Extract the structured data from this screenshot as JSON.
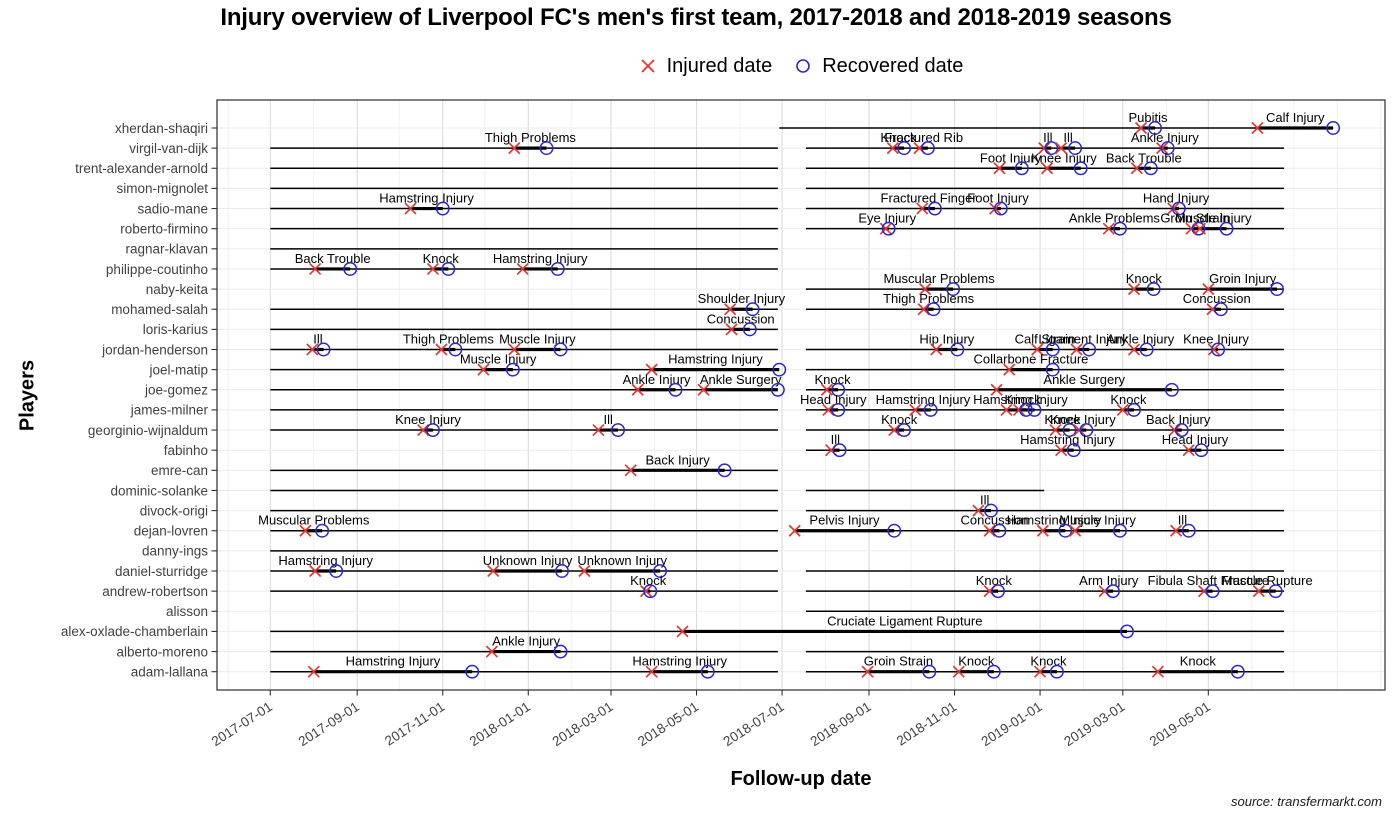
{
  "title": "Injury overview of Liverpool FC's men's first team, 2017-2018 and 2018-2019 seasons",
  "legend": {
    "injured_label": "Injured date",
    "recovered_label": "Recovered date"
  },
  "axes": {
    "y_title": "Players",
    "x_title": "Follow-up date",
    "x_ticks": [
      "2017-07-01",
      "2017-09-01",
      "2017-11-01",
      "2018-01-01",
      "2018-03-01",
      "2018-05-01",
      "2018-07-01",
      "2018-09-01",
      "2018-11-01",
      "2019-01-01",
      "2019-03-01",
      "2019-05-01"
    ]
  },
  "caption": "source: transfermarkt.com",
  "colors": {
    "injured_marker": "#e8352e",
    "recovered_marker": "#2727d3",
    "timeline": "#000000",
    "grid_major": "#dcdcdc",
    "grid_minor": "#f0f0f0",
    "row_grid": "#ebebeb",
    "panel_border": "#2b2b2b",
    "tick_text": "#424242",
    "label_text": "#000000"
  },
  "chart_data": {
    "type": "scatter",
    "subtype": "injury_timeline",
    "title": "Injury overview of Liverpool FC's men's first team, 2017-2018 and 2018-2019 seasons",
    "xlabel": "Follow-up date",
    "ylabel": "Players",
    "legend_position": "top-center",
    "grid": true,
    "x_range": [
      "2017-05-24",
      "2019-09-04"
    ],
    "x_tick_labels": [
      "2017-07-01",
      "2017-09-01",
      "2017-11-01",
      "2018-01-01",
      "2018-03-01",
      "2018-05-01",
      "2018-07-01",
      "2018-09-01",
      "2018-11-01",
      "2019-01-01",
      "2019-03-01",
      "2019-05-01"
    ],
    "series": [
      {
        "name": "Injured date",
        "marker": "x",
        "color": "#e8352e"
      },
      {
        "name": "Recovered date",
        "marker": "o",
        "color": "#2727d3"
      }
    ],
    "players": [
      {
        "name": "xherdan-shaqiri",
        "followup_periods": [
          [
            "2018-06-29",
            "2019-06-24"
          ]
        ],
        "injuries": [
          {
            "label": "Pubitis",
            "injured": "2019-03-14",
            "recovered": "2019-03-24"
          },
          {
            "label": "Calf Injury",
            "injured": "2019-06-05",
            "recovered": "2019-07-29"
          }
        ]
      },
      {
        "name": "virgil-van-dijk",
        "followup_periods": [
          [
            "2017-07-01",
            "2018-06-28"
          ],
          [
            "2018-07-18",
            "2019-06-24"
          ]
        ],
        "injuries": [
          {
            "label": "Thigh Problems",
            "injured": "2017-12-22",
            "recovered": "2018-01-14"
          },
          {
            "label": "Knock",
            "injured": "2018-09-18",
            "recovered": "2018-09-26"
          },
          {
            "label": "Fractured Rib",
            "injured": "2018-10-07",
            "recovered": "2018-10-13"
          },
          {
            "label": "Ill",
            "injured": "2019-01-04",
            "recovered": "2019-01-09"
          },
          {
            "label": "Ill",
            "injured": "2019-01-16",
            "recovered": "2019-01-26"
          },
          {
            "label": "Ankle Injury",
            "injured": "2019-03-29",
            "recovered": "2019-04-02"
          }
        ]
      },
      {
        "name": "trent-alexander-arnold",
        "followup_periods": [
          [
            "2017-07-01",
            "2018-06-28"
          ],
          [
            "2018-07-18",
            "2019-06-24"
          ]
        ],
        "injuries": [
          {
            "label": "Foot Injury",
            "injured": "2018-12-03",
            "recovered": "2018-12-19"
          },
          {
            "label": "Knee Injury",
            "injured": "2019-01-06",
            "recovered": "2019-01-30"
          },
          {
            "label": "Back Trouble",
            "injured": "2019-03-11",
            "recovered": "2019-03-21"
          }
        ]
      },
      {
        "name": "simon-mignolet",
        "followup_periods": [
          [
            "2017-07-01",
            "2018-06-28"
          ],
          [
            "2018-07-18",
            "2019-06-24"
          ]
        ],
        "injuries": []
      },
      {
        "name": "sadio-mane",
        "followup_periods": [
          [
            "2017-07-01",
            "2018-06-28"
          ],
          [
            "2018-07-18",
            "2019-06-24"
          ]
        ],
        "injuries": [
          {
            "label": "Hamstring Injury",
            "injured": "2017-10-09",
            "recovered": "2017-11-01"
          },
          {
            "label": "Fractured Finger",
            "injured": "2018-10-09",
            "recovered": "2018-10-18"
          },
          {
            "label": "Foot Injury",
            "injured": "2018-11-30",
            "recovered": "2018-12-04"
          },
          {
            "label": "Hand Injury",
            "injured": "2019-04-06",
            "recovered": "2019-04-10"
          }
        ]
      },
      {
        "name": "roberto-firmino",
        "followup_periods": [
          [
            "2017-07-01",
            "2018-06-28"
          ],
          [
            "2018-07-18",
            "2019-06-24"
          ]
        ],
        "injuries": [
          {
            "label": "Eye Injury",
            "injured": "2018-09-13",
            "recovered": "2018-09-15"
          },
          {
            "label": "Ankle Problems",
            "injured": "2019-02-19",
            "recovered": "2019-02-27"
          },
          {
            "label": "Groin Strain",
            "injured": "2019-04-19",
            "recovered": "2019-04-24"
          },
          {
            "label": "Muscle Injury",
            "injured": "2019-04-25",
            "recovered": "2019-05-14"
          }
        ]
      },
      {
        "name": "ragnar-klavan",
        "followup_periods": [
          [
            "2017-07-01",
            "2018-06-28"
          ]
        ],
        "injuries": []
      },
      {
        "name": "philippe-coutinho",
        "followup_periods": [
          [
            "2017-07-01",
            "2018-06-28"
          ]
        ],
        "injuries": [
          {
            "label": "Back Trouble",
            "injured": "2017-08-02",
            "recovered": "2017-08-27"
          },
          {
            "label": "Knock",
            "injured": "2017-10-25",
            "recovered": "2017-11-05"
          },
          {
            "label": "Hamstring Injury",
            "injured": "2017-12-28",
            "recovered": "2018-01-22"
          }
        ]
      },
      {
        "name": "naby-keita",
        "followup_periods": [
          [
            "2018-07-18",
            "2019-06-24"
          ]
        ],
        "injuries": [
          {
            "label": "Muscular Problems",
            "injured": "2018-10-11",
            "recovered": "2018-10-31"
          },
          {
            "label": "Knock",
            "injured": "2019-03-09",
            "recovered": "2019-03-23"
          },
          {
            "label": "Groin Injury",
            "injured": "2019-05-01",
            "recovered": "2019-06-19"
          }
        ]
      },
      {
        "name": "mohamed-salah",
        "followup_periods": [
          [
            "2017-07-01",
            "2018-06-28"
          ],
          [
            "2018-07-18",
            "2019-06-24"
          ]
        ],
        "injuries": [
          {
            "label": "Shoulder Injury",
            "injured": "2018-05-25",
            "recovered": "2018-06-10"
          },
          {
            "label": "Thigh Problems",
            "injured": "2018-10-10",
            "recovered": "2018-10-17"
          },
          {
            "label": "Concussion",
            "injured": "2019-05-04",
            "recovered": "2019-05-10"
          }
        ]
      },
      {
        "name": "loris-karius",
        "followup_periods": [
          [
            "2017-07-01",
            "2018-06-28"
          ]
        ],
        "injuries": [
          {
            "label": "Concussion",
            "injured": "2018-05-26",
            "recovered": "2018-06-08"
          }
        ]
      },
      {
        "name": "jordan-henderson",
        "followup_periods": [
          [
            "2017-07-01",
            "2018-06-28"
          ],
          [
            "2018-07-18",
            "2019-06-24"
          ]
        ],
        "injuries": [
          {
            "label": "Ill",
            "injured": "2017-07-31",
            "recovered": "2017-08-08"
          },
          {
            "label": "Thigh Problems",
            "injured": "2017-10-31",
            "recovered": "2017-11-10"
          },
          {
            "label": "Muscle Injury",
            "injured": "2017-12-22",
            "recovered": "2018-01-24"
          },
          {
            "label": "Hip Injury",
            "injured": "2018-10-19",
            "recovered": "2018-11-03"
          },
          {
            "label": "Calf Strain",
            "injured": "2018-12-30",
            "recovered": "2019-01-10"
          },
          {
            "label": "Ligament Injury",
            "injured": "2019-01-27",
            "recovered": "2019-02-05"
          },
          {
            "label": "Ankle Injury",
            "injured": "2019-03-09",
            "recovered": "2019-03-18"
          },
          {
            "label": "Knee Injury",
            "injured": "2019-05-05",
            "recovered": "2019-05-08"
          }
        ]
      },
      {
        "name": "joel-matip",
        "followup_periods": [
          [
            "2017-07-01",
            "2018-06-28"
          ],
          [
            "2018-07-18",
            "2019-06-24"
          ]
        ],
        "injuries": [
          {
            "label": "Muscle Injury",
            "injured": "2017-11-30",
            "recovered": "2017-12-21"
          },
          {
            "label": "Hamstring Injury",
            "injured": "2018-03-30",
            "recovered": "2018-06-29"
          },
          {
            "label": "Collarbone Fracture",
            "injured": "2018-12-10",
            "recovered": "2019-01-10"
          }
        ]
      },
      {
        "name": "joe-gomez",
        "followup_periods": [
          [
            "2017-07-01",
            "2018-06-28"
          ],
          [
            "2018-07-18",
            "2019-06-24"
          ]
        ],
        "injuries": [
          {
            "label": "Ankle Injury",
            "injured": "2018-03-20",
            "recovered": "2018-04-16"
          },
          {
            "label": "Ankle Surgery",
            "injured": "2018-05-06",
            "recovered": "2018-06-28"
          },
          {
            "label": "Knock",
            "injured": "2018-08-02",
            "recovered": "2018-08-10"
          },
          {
            "label": "Ankle Surgery",
            "injured": "2018-12-01",
            "recovered": "2019-04-05"
          }
        ]
      },
      {
        "name": "james-milner",
        "followup_periods": [
          [
            "2017-07-01",
            "2018-06-28"
          ],
          [
            "2018-07-18",
            "2019-06-24"
          ]
        ],
        "injuries": [
          {
            "label": "Head Injury",
            "injured": "2018-08-03",
            "recovered": "2018-08-10"
          },
          {
            "label": "Hamstring Injury",
            "injured": "2018-10-04",
            "recovered": "2018-10-15"
          },
          {
            "label": "Hamstring Injury",
            "injured": "2018-12-08",
            "recovered": "2018-12-28"
          },
          {
            "label": "Knock",
            "injured": "2018-12-17",
            "recovered": "2018-12-22"
          },
          {
            "label": "Knock",
            "injured": "2019-03-01",
            "recovered": "2019-03-09"
          }
        ]
      },
      {
        "name": "georginio-wijnaldum",
        "followup_periods": [
          [
            "2017-07-01",
            "2018-06-28"
          ],
          [
            "2018-07-18",
            "2019-06-24"
          ]
        ],
        "injuries": [
          {
            "label": "Knee Injury",
            "injured": "2017-10-18",
            "recovered": "2017-10-25"
          },
          {
            "label": "Ill",
            "injured": "2018-02-20",
            "recovered": "2018-03-06"
          },
          {
            "label": "Knock",
            "injured": "2018-09-19",
            "recovered": "2018-09-26"
          },
          {
            "label": "Knock",
            "injured": "2019-01-12",
            "recovered": "2019-01-22"
          },
          {
            "label": "Knee Injury",
            "injured": "2019-01-29",
            "recovered": "2019-02-03"
          },
          {
            "label": "Back Injury",
            "injured": "2019-04-07",
            "recovered": "2019-04-12"
          }
        ]
      },
      {
        "name": "fabinho",
        "followup_periods": [
          [
            "2018-07-18",
            "2019-06-24"
          ]
        ],
        "injuries": [
          {
            "label": "Ill",
            "injured": "2018-08-05",
            "recovered": "2018-08-11"
          },
          {
            "label": "Hamstring Injury",
            "injured": "2019-01-16",
            "recovered": "2019-01-25"
          },
          {
            "label": "Head Injury",
            "injured": "2019-04-17",
            "recovered": "2019-04-26"
          }
        ]
      },
      {
        "name": "emre-can",
        "followup_periods": [
          [
            "2017-07-01",
            "2018-06-28"
          ]
        ],
        "injuries": [
          {
            "label": "Back Injury",
            "injured": "2018-03-15",
            "recovered": "2018-05-21"
          }
        ]
      },
      {
        "name": "dominic-solanke",
        "followup_periods": [
          [
            "2017-07-01",
            "2018-06-28"
          ],
          [
            "2018-07-18",
            "2019-01-04"
          ]
        ],
        "injuries": []
      },
      {
        "name": "divock-origi",
        "followup_periods": [
          [
            "2017-07-01",
            "2018-06-28"
          ],
          [
            "2018-07-18",
            "2019-06-24"
          ]
        ],
        "injuries": [
          {
            "label": "Ill",
            "injured": "2018-11-18",
            "recovered": "2018-11-27"
          }
        ]
      },
      {
        "name": "dejan-lovren",
        "followup_periods": [
          [
            "2017-07-01",
            "2018-06-28"
          ],
          [
            "2018-07-18",
            "2019-06-24"
          ]
        ],
        "injuries": [
          {
            "label": "Muscular Problems",
            "injured": "2017-07-26",
            "recovered": "2017-08-07"
          },
          {
            "label": "Pelvis Injury",
            "injured": "2018-07-10",
            "recovered": "2018-09-19"
          },
          {
            "label": "Concussion",
            "injured": "2018-11-26",
            "recovered": "2018-12-03"
          },
          {
            "label": "Hamstring Injury",
            "injured": "2019-01-03",
            "recovered": "2019-01-19"
          },
          {
            "label": "Muscle Injury",
            "injured": "2019-01-26",
            "recovered": "2019-02-27"
          },
          {
            "label": "Ill",
            "injured": "2019-04-08",
            "recovered": "2019-04-17"
          }
        ]
      },
      {
        "name": "danny-ings",
        "followup_periods": [
          [
            "2017-07-01",
            "2018-06-28"
          ]
        ],
        "injuries": []
      },
      {
        "name": "daniel-sturridge",
        "followup_periods": [
          [
            "2017-07-01",
            "2018-06-28"
          ],
          [
            "2018-07-18",
            "2019-06-24"
          ]
        ],
        "injuries": [
          {
            "label": "Hamstring Injury",
            "injured": "2017-08-02",
            "recovered": "2017-08-17"
          },
          {
            "label": "Unknown Injury",
            "injured": "2017-12-07",
            "recovered": "2018-01-25"
          },
          {
            "label": "Unknown Injury",
            "injured": "2018-02-10",
            "recovered": "2018-04-05"
          }
        ]
      },
      {
        "name": "andrew-robertson",
        "followup_periods": [
          [
            "2017-07-01",
            "2018-06-28"
          ],
          [
            "2018-07-18",
            "2019-06-24"
          ]
        ],
        "injuries": [
          {
            "label": "Knock",
            "injured": "2018-03-26",
            "recovered": "2018-03-29"
          },
          {
            "label": "Knock",
            "injured": "2018-11-26",
            "recovered": "2018-12-02"
          },
          {
            "label": "Arm Injury",
            "injured": "2019-02-16",
            "recovered": "2019-02-22"
          },
          {
            "label": "Fibula Shaft Fracture",
            "injured": "2019-04-28",
            "recovered": "2019-05-04"
          },
          {
            "label": "Muscle Rupture",
            "injured": "2019-06-06",
            "recovered": "2019-06-18"
          }
        ]
      },
      {
        "name": "alisson",
        "followup_periods": [
          [
            "2018-07-18",
            "2019-06-24"
          ]
        ],
        "injuries": []
      },
      {
        "name": "alex-oxlade-chamberlain",
        "followup_periods": [
          [
            "2017-07-01",
            "2018-06-28"
          ],
          [
            "2018-07-18",
            "2019-06-24"
          ]
        ],
        "injuries": [
          {
            "label": "Cruciate Ligament Rupture",
            "injured": "2018-04-21",
            "recovered": "2019-03-04"
          }
        ]
      },
      {
        "name": "alberto-moreno",
        "followup_periods": [
          [
            "2017-07-01",
            "2018-06-28"
          ],
          [
            "2018-07-18",
            "2019-06-24"
          ]
        ],
        "injuries": [
          {
            "label": "Ankle Injury",
            "injured": "2017-12-06",
            "recovered": "2018-01-24"
          }
        ]
      },
      {
        "name": "adam-lallana",
        "followup_periods": [
          [
            "2017-07-01",
            "2018-06-28"
          ],
          [
            "2018-07-18",
            "2019-06-24"
          ]
        ],
        "injuries": [
          {
            "label": "Hamstring Injury",
            "injured": "2017-08-01",
            "recovered": "2017-11-22"
          },
          {
            "label": "Hamstring Injury",
            "injured": "2018-03-30",
            "recovered": "2018-05-09"
          },
          {
            "label": "Groin Strain",
            "injured": "2018-08-31",
            "recovered": "2018-10-14"
          },
          {
            "label": "Knock",
            "injured": "2018-11-04",
            "recovered": "2018-11-29"
          },
          {
            "label": "Knock",
            "injured": "2019-01-01",
            "recovered": "2019-01-13"
          },
          {
            "label": "Knock",
            "injured": "2019-03-26",
            "recovered": "2019-05-22"
          }
        ]
      }
    ]
  }
}
